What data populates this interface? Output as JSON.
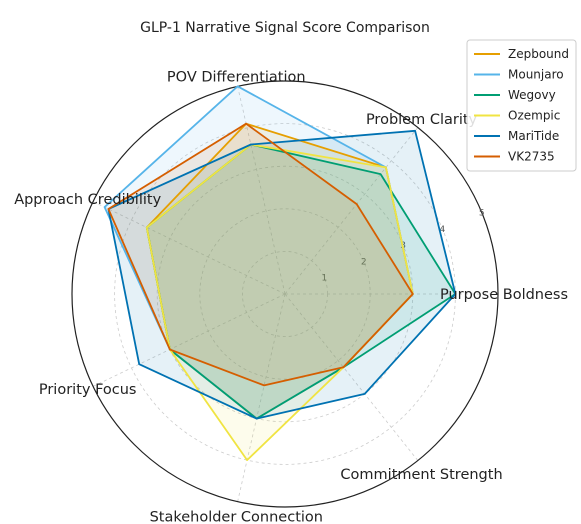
{
  "chart_data": {
    "type": "radar",
    "title": "GLP-1 Narrative Signal Score Comparison",
    "axes": [
      "Purpose Boldness",
      "Problem Clarity",
      "POV Differentiation",
      "Approach Credibility",
      "Priority Focus",
      "Stakeholder Connection",
      "Commitment Strength"
    ],
    "rmax": 5,
    "radial_ticks": [
      1,
      2,
      3,
      4,
      5
    ],
    "grid": true,
    "legend_position": "top-right",
    "series": [
      {
        "name": "Zepbound",
        "color": "#E69F00",
        "values": [
          3.0,
          3.8,
          4.1,
          3.6,
          3.0,
          3.0,
          2.2
        ]
      },
      {
        "name": "Mounjaro",
        "color": "#56B4E9",
        "values": [
          3.0,
          3.8,
          5.0,
          4.7,
          3.0,
          3.0,
          2.2
        ]
      },
      {
        "name": "Wegovy",
        "color": "#009E73",
        "values": [
          4.0,
          3.6,
          3.6,
          3.6,
          3.0,
          3.0,
          2.2
        ]
      },
      {
        "name": "Ozempic",
        "color": "#F0E442",
        "values": [
          3.0,
          3.8,
          3.6,
          3.6,
          3.0,
          4.0,
          2.2
        ]
      },
      {
        "name": "MariTide",
        "color": "#0072B2",
        "values": [
          4.0,
          4.9,
          3.6,
          4.6,
          3.8,
          3.0,
          3.0
        ]
      },
      {
        "name": "VK2735",
        "color": "#D55E00",
        "values": [
          3.0,
          2.7,
          4.1,
          4.6,
          3.0,
          2.2,
          2.2
        ]
      }
    ]
  }
}
